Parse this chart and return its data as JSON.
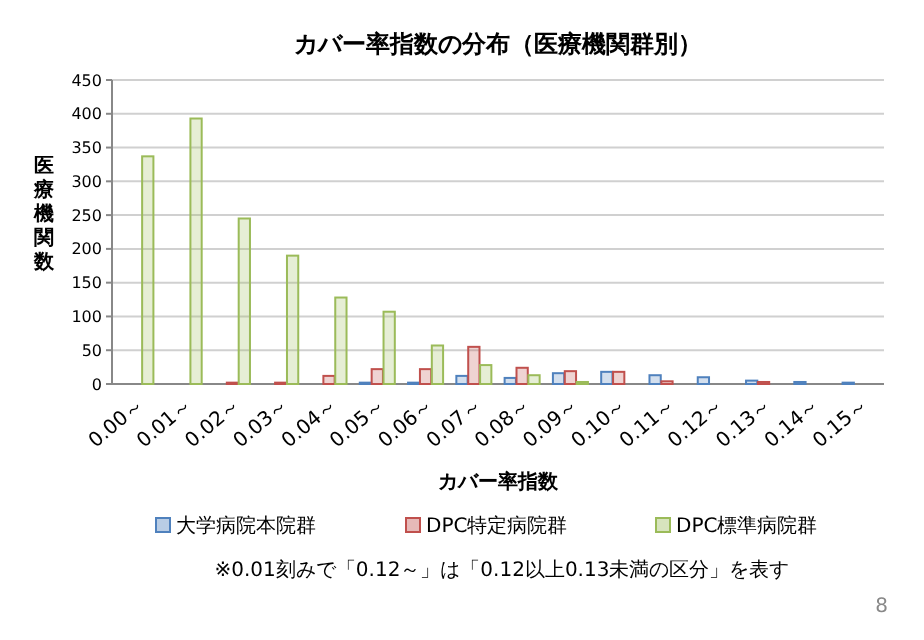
{
  "chart_data": {
    "type": "bar",
    "title": "カバー率指数の分布（医療機関群別）",
    "xlabel": "カバー率指数",
    "ylabel": "医療機関数",
    "categories": [
      "0.00～",
      "0.01～",
      "0.02～",
      "0.03～",
      "0.04～",
      "0.05～",
      "0.06～",
      "0.07～",
      "0.08～",
      "0.09～",
      "0.10～",
      "0.11～",
      "0.12～",
      "0.13～",
      "0.14～",
      "0.15～"
    ],
    "series": [
      {
        "name": "大学病院本院群",
        "color": "#4f81bd",
        "values": [
          0,
          0,
          0,
          0,
          0,
          2,
          2,
          12,
          9,
          16,
          18,
          13,
          10,
          5,
          3,
          2
        ]
      },
      {
        "name": "DPC特定病院群",
        "color": "#c0504d",
        "values": [
          0,
          0,
          2,
          2,
          12,
          22,
          22,
          55,
          24,
          19,
          18,
          4,
          0,
          3,
          0,
          0
        ]
      },
      {
        "name": "DPC標準病院群",
        "color": "#9bbb59",
        "values": [
          337,
          393,
          245,
          190,
          128,
          107,
          57,
          28,
          13,
          3,
          0,
          0,
          0,
          0,
          0,
          0
        ]
      }
    ],
    "ylim": [
      0,
      450
    ],
    "yticks": [
      0,
      50,
      100,
      150,
      200,
      250,
      300,
      350,
      400,
      450
    ],
    "grid": "y",
    "legend": "bottom",
    "annotations": [
      "※0.01刻みで「0.12～」は「0.12以上0.13未満の区分」を表す",
      "8"
    ]
  }
}
